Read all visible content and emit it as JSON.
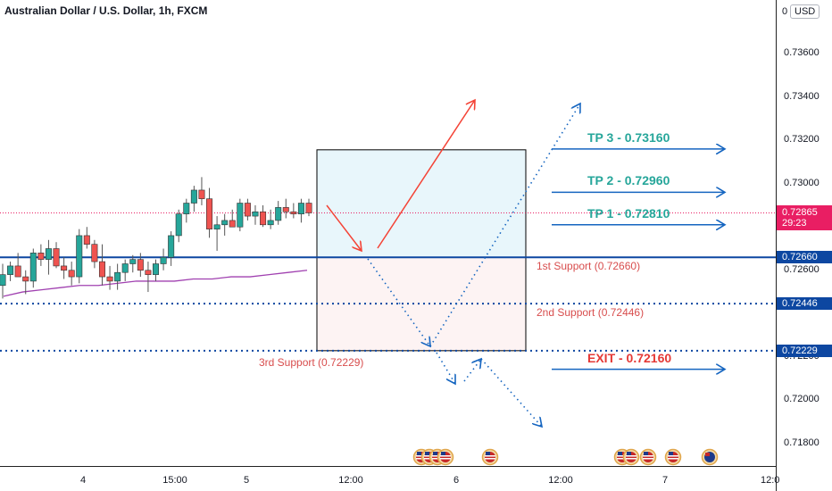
{
  "header": {
    "title": "Australian Dollar / U.S. Dollar, 1h, FXCM",
    "currency": "USD",
    "top_partial_label": "0"
  },
  "colors": {
    "up": "#26a69a",
    "down": "#ef5350",
    "support_line": "#0d47a1",
    "tp_text": "#26a69a",
    "exit_text": "#e53935",
    "ma": "#a040b0",
    "current": "#e91e63",
    "arrow_red": "#f44336",
    "arrow_blue": "#1565c0"
  },
  "chart_data": {
    "type": "candlestick",
    "symbol": "AUDUSD",
    "timeframe": "1h",
    "y_range": [
      0.717,
      0.7378
    ],
    "y_ticks": [
      0.736,
      0.734,
      0.732,
      0.73,
      0.726,
      0.722,
      0.72,
      0.718
    ],
    "y_tick_labels": [
      "0.73600",
      "0.73400",
      "0.73200",
      "0.73000",
      "0.72600",
      "0.72200",
      "0.72000",
      "0.71800"
    ],
    "x_labels": [
      "4",
      "15:00",
      "5",
      "12:00",
      "6",
      "12:00",
      "7",
      "12:0"
    ],
    "candles": [
      {
        "o": 0.7253,
        "h": 0.7263,
        "l": 0.7247,
        "c": 0.7258
      },
      {
        "o": 0.7258,
        "h": 0.7264,
        "l": 0.7255,
        "c": 0.7262
      },
      {
        "o": 0.7262,
        "h": 0.7268,
        "l": 0.7257,
        "c": 0.7257
      },
      {
        "o": 0.7257,
        "h": 0.726,
        "l": 0.7249,
        "c": 0.7255
      },
      {
        "o": 0.7255,
        "h": 0.727,
        "l": 0.7252,
        "c": 0.7268
      },
      {
        "o": 0.7268,
        "h": 0.7272,
        "l": 0.7262,
        "c": 0.7265
      },
      {
        "o": 0.7265,
        "h": 0.7274,
        "l": 0.7258,
        "c": 0.727
      },
      {
        "o": 0.727,
        "h": 0.7273,
        "l": 0.7261,
        "c": 0.7262
      },
      {
        "o": 0.7262,
        "h": 0.7266,
        "l": 0.7256,
        "c": 0.726
      },
      {
        "o": 0.726,
        "h": 0.7264,
        "l": 0.7253,
        "c": 0.7257
      },
      {
        "o": 0.7257,
        "h": 0.7279,
        "l": 0.7254,
        "c": 0.7276
      },
      {
        "o": 0.7276,
        "h": 0.728,
        "l": 0.727,
        "c": 0.7272
      },
      {
        "o": 0.7272,
        "h": 0.7274,
        "l": 0.7261,
        "c": 0.7264
      },
      {
        "o": 0.7264,
        "h": 0.7272,
        "l": 0.7253,
        "c": 0.7257
      },
      {
        "o": 0.7257,
        "h": 0.7262,
        "l": 0.7251,
        "c": 0.7255
      },
      {
        "o": 0.7255,
        "h": 0.7263,
        "l": 0.7251,
        "c": 0.7259
      },
      {
        "o": 0.7259,
        "h": 0.7265,
        "l": 0.7255,
        "c": 0.7263
      },
      {
        "o": 0.7263,
        "h": 0.7267,
        "l": 0.7259,
        "c": 0.7265
      },
      {
        "o": 0.7265,
        "h": 0.7268,
        "l": 0.7257,
        "c": 0.726
      },
      {
        "o": 0.726,
        "h": 0.7264,
        "l": 0.725,
        "c": 0.7258
      },
      {
        "o": 0.7258,
        "h": 0.7265,
        "l": 0.7255,
        "c": 0.7263
      },
      {
        "o": 0.7263,
        "h": 0.727,
        "l": 0.726,
        "c": 0.7266
      },
      {
        "o": 0.7266,
        "h": 0.7278,
        "l": 0.7262,
        "c": 0.7276
      },
      {
        "o": 0.7276,
        "h": 0.7288,
        "l": 0.7273,
        "c": 0.7286
      },
      {
        "o": 0.7286,
        "h": 0.7293,
        "l": 0.7282,
        "c": 0.7291
      },
      {
        "o": 0.7291,
        "h": 0.7299,
        "l": 0.7287,
        "c": 0.7297
      },
      {
        "o": 0.7297,
        "h": 0.7303,
        "l": 0.729,
        "c": 0.7293
      },
      {
        "o": 0.7293,
        "h": 0.7298,
        "l": 0.7275,
        "c": 0.7279
      },
      {
        "o": 0.7279,
        "h": 0.7285,
        "l": 0.7269,
        "c": 0.7281
      },
      {
        "o": 0.7281,
        "h": 0.7286,
        "l": 0.7276,
        "c": 0.7283
      },
      {
        "o": 0.7283,
        "h": 0.7288,
        "l": 0.728,
        "c": 0.728
      },
      {
        "o": 0.728,
        "h": 0.7293,
        "l": 0.7278,
        "c": 0.7291
      },
      {
        "o": 0.7291,
        "h": 0.7293,
        "l": 0.7283,
        "c": 0.7285
      },
      {
        "o": 0.7285,
        "h": 0.729,
        "l": 0.7281,
        "c": 0.7287
      },
      {
        "o": 0.7287,
        "h": 0.729,
        "l": 0.728,
        "c": 0.7281
      },
      {
        "o": 0.7281,
        "h": 0.7288,
        "l": 0.7279,
        "c": 0.7283
      },
      {
        "o": 0.7283,
        "h": 0.7292,
        "l": 0.7281,
        "c": 0.7289
      },
      {
        "o": 0.7289,
        "h": 0.7293,
        "l": 0.7284,
        "c": 0.7287
      },
      {
        "o": 0.7287,
        "h": 0.7291,
        "l": 0.7284,
        "c": 0.7286
      },
      {
        "o": 0.7286,
        "h": 0.7293,
        "l": 0.7282,
        "c": 0.7291
      },
      {
        "o": 0.7291,
        "h": 0.7293,
        "l": 0.7285,
        "c": 0.72865
      }
    ],
    "moving_average": [
      0.7248,
      0.725,
      0.7251,
      0.7252,
      0.7253,
      0.7253,
      0.7254,
      0.7255,
      0.7255,
      0.7255,
      0.7256,
      0.7256,
      0.7257,
      0.7257,
      0.7258,
      0.7259,
      0.726
    ],
    "current_price": {
      "label": "0.72865",
      "countdown": "29:23",
      "value": 0.72865
    },
    "levels": [
      {
        "name": "1st Support",
        "value": 0.7266,
        "label": "1st Support (0.72660)",
        "tag": "0.72660",
        "style": "solid"
      },
      {
        "name": "2nd Support",
        "value": 0.72446,
        "label": "2nd Support (0.72446)",
        "tag": "0.72446",
        "style": "dotted"
      },
      {
        "name": "3rd Support",
        "value": 0.72229,
        "label": "3rd Support (0.72229)",
        "tag": "0.72229",
        "style": "dotted"
      }
    ],
    "targets": [
      {
        "label": "TP 3 - 0.73160",
        "value": 0.7316,
        "kind": "tp"
      },
      {
        "label": "TP 2 - 0.72960",
        "value": 0.7296,
        "kind": "tp"
      },
      {
        "label": "TP 1 - 0.72810",
        "value": 0.7281,
        "kind": "tp"
      },
      {
        "label": "EXIT - 0.72160",
        "value": 0.7216,
        "kind": "exit"
      }
    ],
    "event_icons": [
      "us-flag",
      "us-flag",
      "us-flag",
      "us-flag",
      "us-flag",
      "us-flag",
      "us-flag",
      "us-flag",
      "au-flag"
    ]
  }
}
